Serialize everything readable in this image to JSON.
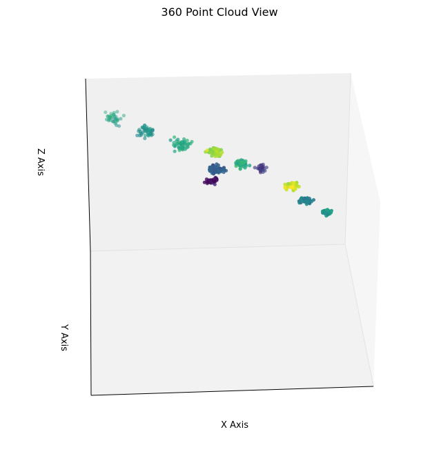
{
  "chart_data": {
    "type": "scatter",
    "projection": "3d",
    "title": "360 Point Cloud View",
    "xlabel": "X Axis",
    "ylabel": "Y Axis",
    "zlabel": "Z Axis",
    "colormap": "viridis",
    "grid": false,
    "legend": "none",
    "clusters": [
      {
        "x": 0.08,
        "y": 0.5,
        "z": 0.78,
        "c": 0.58,
        "n": 35,
        "spread": 0.05,
        "alpha": 0.5
      },
      {
        "x": 0.2,
        "y": 0.5,
        "z": 0.72,
        "c": 0.52,
        "n": 45,
        "spread": 0.05,
        "alpha": 0.6
      },
      {
        "x": 0.33,
        "y": 0.5,
        "z": 0.66,
        "c": 0.6,
        "n": 50,
        "spread": 0.05,
        "alpha": 0.7
      },
      {
        "x": 0.45,
        "y": 0.5,
        "z": 0.63,
        "c": 0.85,
        "n": 55,
        "spread": 0.04,
        "alpha": 0.85
      },
      {
        "x": 0.46,
        "y": 0.5,
        "z": 0.53,
        "c": 0.3,
        "n": 70,
        "spread": 0.04,
        "alpha": 0.85
      },
      {
        "x": 0.44,
        "y": 0.5,
        "z": 0.46,
        "c": 0.05,
        "n": 30,
        "spread": 0.035,
        "alpha": 0.8
      },
      {
        "x": 0.55,
        "y": 0.5,
        "z": 0.57,
        "c": 0.62,
        "n": 40,
        "spread": 0.04,
        "alpha": 0.8
      },
      {
        "x": 0.62,
        "y": 0.5,
        "z": 0.56,
        "c": 0.18,
        "n": 25,
        "spread": 0.035,
        "alpha": 0.65
      },
      {
        "x": 0.73,
        "y": 0.5,
        "z": 0.47,
        "c": 0.92,
        "n": 35,
        "spread": 0.035,
        "alpha": 0.9
      },
      {
        "x": 0.78,
        "y": 0.5,
        "z": 0.39,
        "c": 0.45,
        "n": 40,
        "spread": 0.035,
        "alpha": 0.9
      },
      {
        "x": 0.86,
        "y": 0.5,
        "z": 0.33,
        "c": 0.55,
        "n": 30,
        "spread": 0.03,
        "alpha": 0.95
      }
    ]
  }
}
